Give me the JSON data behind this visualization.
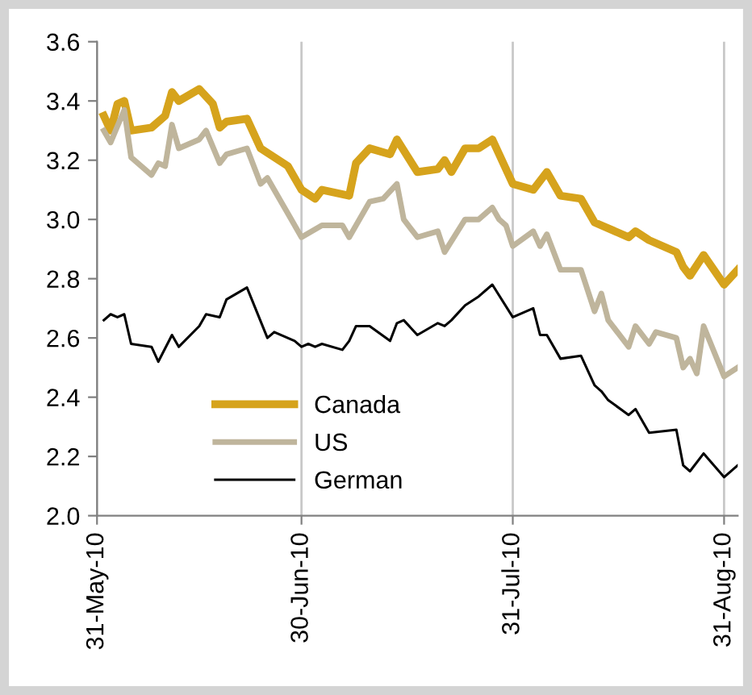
{
  "chart_data": {
    "type": "line",
    "xlim": [
      "2010-05-31",
      "2010-09-02"
    ],
    "xticks": [
      {
        "value": "2010-05-31",
        "label": "31-May-10"
      },
      {
        "value": "2010-06-30",
        "label": "30-Jun-10"
      },
      {
        "value": "2010-07-31",
        "label": "31-Jul-10"
      },
      {
        "value": "2010-08-31",
        "label": "31-Aug-10"
      }
    ],
    "ylim": [
      2.0,
      3.6
    ],
    "yticks": [
      {
        "value": 2.0,
        "label": "2.0"
      },
      {
        "value": 2.2,
        "label": "2.2"
      },
      {
        "value": 2.4,
        "label": "2.4"
      },
      {
        "value": 2.6,
        "label": "2.6"
      },
      {
        "value": 2.8,
        "label": "2.8"
      },
      {
        "value": 3.0,
        "label": "3.0"
      },
      {
        "value": 3.2,
        "label": "3.2"
      },
      {
        "value": 3.4,
        "label": "3.4"
      },
      {
        "value": 3.6,
        "label": "3.6"
      }
    ],
    "grid": "x",
    "legend": "bottom left",
    "marker": "none",
    "line_style": "solid",
    "series": [
      {
        "name": "Canada",
        "color": "#d6a31c",
        "x": [
          "2010-06-01",
          "2010-06-02",
          "2010-06-03",
          "2010-06-04",
          "2010-06-05",
          "2010-06-08",
          "2010-06-10",
          "2010-06-11",
          "2010-06-12",
          "2010-06-15",
          "2010-06-17",
          "2010-06-18",
          "2010-06-19",
          "2010-06-22",
          "2010-06-24",
          "2010-06-26",
          "2010-06-28",
          "2010-06-30",
          "2010-07-02",
          "2010-07-03",
          "2010-07-07",
          "2010-07-08",
          "2010-07-10",
          "2010-07-13",
          "2010-07-14",
          "2010-07-17",
          "2010-07-20",
          "2010-07-21",
          "2010-07-22",
          "2010-07-24",
          "2010-07-26",
          "2010-07-28",
          "2010-07-31",
          "2010-08-03",
          "2010-08-05",
          "2010-08-07",
          "2010-08-10",
          "2010-08-12",
          "2010-08-17",
          "2010-08-18",
          "2010-08-20",
          "2010-08-24",
          "2010-08-25",
          "2010-08-26",
          "2010-08-28",
          "2010-08-31",
          "2010-09-02"
        ],
        "values": [
          3.35,
          3.3,
          3.39,
          3.4,
          3.3,
          3.31,
          3.35,
          3.43,
          3.4,
          3.44,
          3.39,
          3.31,
          3.33,
          3.34,
          3.24,
          3.21,
          3.18,
          3.1,
          3.07,
          3.1,
          3.08,
          3.19,
          3.24,
          3.22,
          3.27,
          3.16,
          3.17,
          3.2,
          3.16,
          3.24,
          3.24,
          3.27,
          3.12,
          3.1,
          3.16,
          3.08,
          3.07,
          2.99,
          2.94,
          2.96,
          2.93,
          2.89,
          2.84,
          2.81,
          2.88,
          2.78,
          2.83
        ]
      },
      {
        "name": "US",
        "color": "#bfb59c",
        "x": [
          "2010-06-01",
          "2010-06-02",
          "2010-06-04",
          "2010-06-05",
          "2010-06-08",
          "2010-06-09",
          "2010-06-10",
          "2010-06-11",
          "2010-06-12",
          "2010-06-15",
          "2010-06-16",
          "2010-06-18",
          "2010-06-19",
          "2010-06-22",
          "2010-06-24",
          "2010-06-25",
          "2010-06-28",
          "2010-06-30",
          "2010-07-03",
          "2010-07-06",
          "2010-07-07",
          "2010-07-10",
          "2010-07-12",
          "2010-07-14",
          "2010-07-15",
          "2010-07-17",
          "2010-07-20",
          "2010-07-21",
          "2010-07-24",
          "2010-07-26",
          "2010-07-28",
          "2010-07-29",
          "2010-07-30",
          "2010-07-31",
          "2010-08-03",
          "2010-08-04",
          "2010-08-05",
          "2010-08-07",
          "2010-08-10",
          "2010-08-12",
          "2010-08-13",
          "2010-08-14",
          "2010-08-17",
          "2010-08-18",
          "2010-08-20",
          "2010-08-21",
          "2010-08-24",
          "2010-08-25",
          "2010-08-26",
          "2010-08-27",
          "2010-08-28",
          "2010-08-31",
          "2010-09-02"
        ],
        "values": [
          3.3,
          3.26,
          3.37,
          3.21,
          3.15,
          3.19,
          3.18,
          3.32,
          3.24,
          3.27,
          3.3,
          3.19,
          3.22,
          3.24,
          3.12,
          3.14,
          3.02,
          2.94,
          2.98,
          2.98,
          2.94,
          3.06,
          3.07,
          3.12,
          3.0,
          2.94,
          2.96,
          2.89,
          3.0,
          3.0,
          3.04,
          3.0,
          2.98,
          2.91,
          2.96,
          2.91,
          2.95,
          2.83,
          2.83,
          2.69,
          2.75,
          2.66,
          2.57,
          2.64,
          2.58,
          2.62,
          2.6,
          2.5,
          2.53,
          2.48,
          2.64,
          2.47,
          2.5
        ]
      },
      {
        "name": "German",
        "color": "#000000",
        "x": [
          "2010-06-01",
          "2010-06-02",
          "2010-06-03",
          "2010-06-04",
          "2010-06-05",
          "2010-06-08",
          "2010-06-09",
          "2010-06-11",
          "2010-06-12",
          "2010-06-15",
          "2010-06-16",
          "2010-06-18",
          "2010-06-19",
          "2010-06-22",
          "2010-06-25",
          "2010-06-26",
          "2010-06-29",
          "2010-06-30",
          "2010-07-01",
          "2010-07-02",
          "2010-07-03",
          "2010-07-06",
          "2010-07-07",
          "2010-07-08",
          "2010-07-10",
          "2010-07-13",
          "2010-07-14",
          "2010-07-15",
          "2010-07-17",
          "2010-07-20",
          "2010-07-21",
          "2010-07-22",
          "2010-07-24",
          "2010-07-26",
          "2010-07-28",
          "2010-07-31",
          "2010-08-03",
          "2010-08-04",
          "2010-08-05",
          "2010-08-07",
          "2010-08-10",
          "2010-08-12",
          "2010-08-13",
          "2010-08-14",
          "2010-08-17",
          "2010-08-18",
          "2010-08-20",
          "2010-08-24",
          "2010-08-25",
          "2010-08-26",
          "2010-08-28",
          "2010-08-31",
          "2010-09-02"
        ],
        "values": [
          2.66,
          2.68,
          2.67,
          2.68,
          2.58,
          2.57,
          2.52,
          2.61,
          2.57,
          2.64,
          2.68,
          2.67,
          2.73,
          2.77,
          2.6,
          2.62,
          2.59,
          2.57,
          2.58,
          2.57,
          2.58,
          2.56,
          2.59,
          2.64,
          2.64,
          2.59,
          2.65,
          2.66,
          2.61,
          2.65,
          2.64,
          2.66,
          2.71,
          2.74,
          2.78,
          2.67,
          2.7,
          2.61,
          2.61,
          2.53,
          2.54,
          2.44,
          2.42,
          2.39,
          2.34,
          2.36,
          2.28,
          2.29,
          2.17,
          2.15,
          2.21,
          2.13,
          2.17
        ]
      }
    ]
  }
}
